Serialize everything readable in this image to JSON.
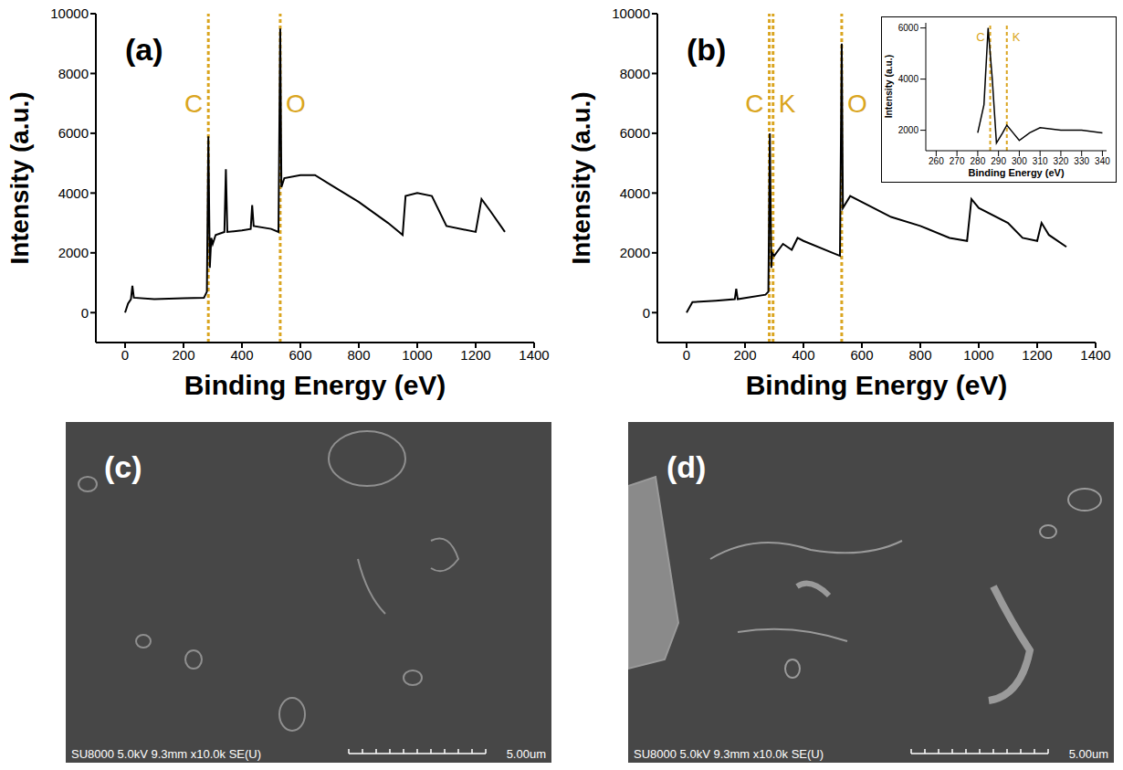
{
  "chart_data": [
    {
      "type": "line",
      "panel_label": "(a)",
      "x_label": "Binding Energy (eV)",
      "y_label": "Intensity (a.u.)",
      "color": "#000000",
      "x": [
        0,
        10,
        20,
        25,
        30,
        100,
        200,
        270,
        280,
        285,
        290,
        295,
        300,
        310,
        340,
        345,
        350,
        400,
        430,
        435,
        440,
        500,
        525,
        531,
        535,
        545,
        600,
        650,
        700,
        800,
        900,
        950,
        960,
        1000,
        1050,
        1100,
        1200,
        1220,
        1250,
        1300
      ],
      "values": [
        0,
        300,
        450,
        900,
        500,
        450,
        480,
        500,
        700,
        5900,
        1500,
        2500,
        2300,
        2600,
        2700,
        4800,
        2700,
        2750,
        2800,
        3600,
        2900,
        2800,
        2700,
        9500,
        4200,
        4500,
        4600,
        4600,
        4300,
        3700,
        3000,
        2600,
        3900,
        4000,
        3900,
        2900,
        2700,
        3800,
        3400,
        2700
      ],
      "xlim": [
        -100,
        1400
      ],
      "xticks": [
        0,
        200,
        400,
        600,
        800,
        1000,
        1200,
        1400
      ],
      "ylim": [
        -1000,
        10000
      ],
      "yticks": [
        0,
        2000,
        4000,
        6000,
        8000,
        10000
      ],
      "annotations": [
        {
          "x": 285,
          "label": "C",
          "color": "#DAA520"
        },
        {
          "x": 531,
          "label": "O",
          "color": "#DAA520"
        }
      ]
    },
    {
      "type": "line",
      "panel_label": "(b)",
      "x_label": "Binding Energy (eV)",
      "y_label": "Intensity (a.u.)",
      "color": "#000000",
      "x": [
        0,
        20,
        100,
        165,
        170,
        175,
        270,
        280,
        285,
        290,
        293,
        300,
        330,
        360,
        380,
        400,
        500,
        525,
        531,
        535,
        560,
        700,
        800,
        900,
        960,
        975,
        1000,
        1100,
        1150,
        1200,
        1215,
        1240,
        1300
      ],
      "values": [
        0,
        350,
        400,
        450,
        800,
        450,
        600,
        700,
        6000,
        1500,
        2000,
        1900,
        2300,
        2100,
        2500,
        2400,
        2000,
        1900,
        9000,
        3500,
        3900,
        3200,
        2900,
        2500,
        2400,
        3800,
        3500,
        3000,
        2500,
        2400,
        3000,
        2600,
        2200
      ],
      "xlim": [
        -100,
        1400
      ],
      "xticks": [
        0,
        200,
        400,
        600,
        800,
        1000,
        1200,
        1400
      ],
      "ylim": [
        -1000,
        10000
      ],
      "yticks": [
        0,
        2000,
        4000,
        6000,
        8000,
        10000
      ],
      "annotations": [
        {
          "x": 283,
          "label": "C",
          "color": "#DAA520"
        },
        {
          "x": 296,
          "label": "K",
          "color": "#DAA520"
        },
        {
          "x": 531,
          "label": "O",
          "color": "#DAA520"
        }
      ],
      "inset": {
        "type": "line",
        "x_label": "Binding Energy (eV)",
        "y_label": "Intensity (a.u.)",
        "color": "#000000",
        "x": [
          280,
          283,
          285,
          287,
          289,
          292,
          294,
          297,
          300,
          305,
          310,
          320,
          330,
          340
        ],
        "values": [
          1900,
          3000,
          6000,
          4000,
          1500,
          1900,
          2200,
          1900,
          1600,
          1900,
          2100,
          2000,
          2000,
          1900
        ],
        "xlim": [
          255,
          342
        ],
        "xticks": [
          260,
          270,
          280,
          290,
          300,
          310,
          320,
          330,
          340
        ],
        "ylim": [
          1200,
          6200
        ],
        "yticks": [
          2000,
          4000,
          6000
        ],
        "annotations": [
          {
            "x": 286,
            "label": "C",
            "color": "#DAA520"
          },
          {
            "x": 294,
            "label": "K",
            "color": "#DAA520"
          }
        ]
      }
    }
  ],
  "images": [
    {
      "label": "(c)",
      "caption": "SU8000 5.0kV 9.3mm x10.0k SE(U)",
      "scale_bar": "5.00um"
    },
    {
      "label": "(d)",
      "caption": "SU8000 5.0kV 9.3mm x10.0k SE(U)",
      "scale_bar": "5.00um"
    }
  ]
}
